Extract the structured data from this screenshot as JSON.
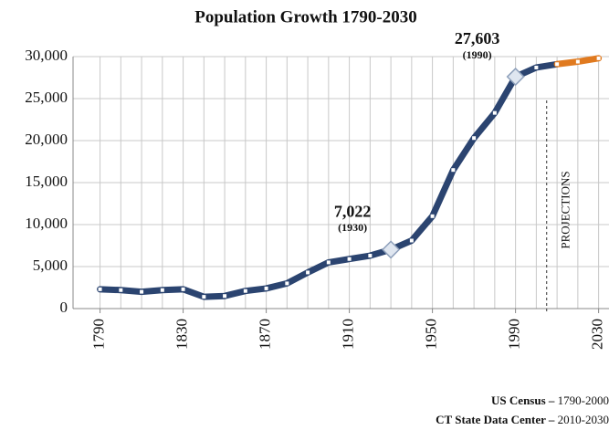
{
  "chart_data": {
    "type": "line",
    "title": "Population Growth 1790-2030",
    "x": [
      1790,
      1800,
      1810,
      1820,
      1830,
      1840,
      1850,
      1860,
      1870,
      1880,
      1890,
      1900,
      1910,
      1920,
      1930,
      1940,
      1950,
      1960,
      1970,
      1980,
      1990,
      2000,
      2010,
      2020,
      2030
    ],
    "series": [
      {
        "name": "US Census",
        "color": "#2b4470",
        "values": [
          2300,
          2200,
          2000,
          2200,
          2300,
          1400,
          1500,
          2100,
          2400,
          3000,
          4300,
          5500,
          5900,
          6300,
          7022,
          8100,
          11000,
          16500,
          20300,
          23300,
          27603,
          28700,
          29100,
          null,
          null
        ]
      },
      {
        "name": "CT State Data Center",
        "color": "#e07a1f",
        "values": [
          null,
          null,
          null,
          null,
          null,
          null,
          null,
          null,
          null,
          null,
          null,
          null,
          null,
          null,
          null,
          null,
          null,
          null,
          null,
          null,
          null,
          null,
          29100,
          29400,
          29800
        ]
      }
    ],
    "xlim": [
      1777,
      2035
    ],
    "xticks": [
      1790,
      1830,
      1870,
      1910,
      1950,
      1990,
      2030
    ],
    "ylim": [
      0,
      30000
    ],
    "yticks": [
      0,
      {
        "value": 5000,
        "label": "5,000"
      },
      {
        "value": 10000,
        "label": "10,000"
      },
      {
        "value": 15000,
        "label": "15,000"
      },
      {
        "value": 20000,
        "label": "20,000"
      },
      {
        "value": 25000,
        "label": "25,000"
      },
      {
        "value": 30000,
        "label": "30,000"
      }
    ],
    "grid": true,
    "annotations": [
      {
        "label": "7,022",
        "sub": "(1930)",
        "x": 1930,
        "y": 7022
      },
      {
        "label": "27,603",
        "sub": "(1990)",
        "x": 1990,
        "y": 27603
      }
    ],
    "projection_line": {
      "x": 2005,
      "label": "PROJECTIONS"
    },
    "sources": [
      {
        "name": "US Census –",
        "range": "1790-2000"
      },
      {
        "name": "CT State Data Center –",
        "range": "2010-2030"
      }
    ]
  }
}
